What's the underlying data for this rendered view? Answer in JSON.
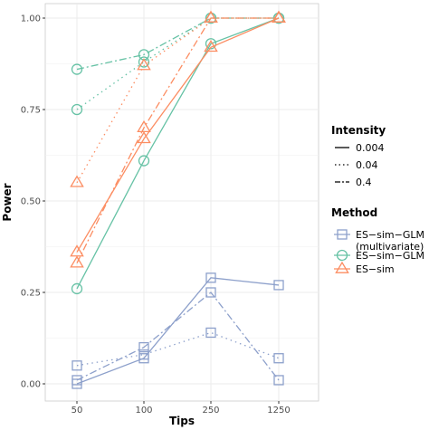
{
  "chart_data": {
    "type": "line",
    "xlabel": "Tips",
    "ylabel": "Power",
    "categories": [
      "50",
      "100",
      "250",
      "1250"
    ],
    "y_ticks": [
      "0.00",
      "0.25",
      "0.50",
      "0.75",
      "1.00"
    ],
    "ylim": [
      0,
      1
    ],
    "grid": true,
    "legend_placement": "right",
    "legends": {
      "intensity": {
        "title": "Intensity",
        "items": [
          {
            "label": "0.004",
            "linetype": "solid"
          },
          {
            "label": "0.04",
            "linetype": "dotted"
          },
          {
            "label": "0.4",
            "linetype": "dashdot"
          }
        ]
      },
      "method": {
        "title": "Method",
        "items": [
          {
            "label_lines": [
              "ES−sim−GLM",
              "(multivariate)"
            ],
            "marker": "square",
            "color": "#8da0cb"
          },
          {
            "label_lines": [
              "ES−sim−GLM"
            ],
            "marker": "circle",
            "color": "#66c2a5"
          },
          {
            "label_lines": [
              "ES−sim"
            ],
            "marker": "triangle",
            "color": "#fc8d62"
          }
        ]
      }
    },
    "series": [
      {
        "method": "ES−sim−GLM",
        "intensity": "0.004",
        "color": "#66c2a5",
        "marker": "circle",
        "linetype": "solid",
        "values": [
          0.26,
          0.61,
          0.93,
          1.0
        ]
      },
      {
        "method": "ES−sim−GLM",
        "intensity": "0.04",
        "color": "#66c2a5",
        "marker": "circle",
        "linetype": "dotted",
        "values": [
          0.75,
          0.88,
          1.0,
          1.0
        ]
      },
      {
        "method": "ES−sim−GLM",
        "intensity": "0.4",
        "color": "#66c2a5",
        "marker": "circle",
        "linetype": "dashdot",
        "values": [
          0.86,
          0.9,
          1.0,
          1.0
        ]
      },
      {
        "method": "ES−sim",
        "intensity": "0.004",
        "color": "#fc8d62",
        "marker": "triangle",
        "linetype": "solid",
        "values": [
          0.36,
          0.67,
          0.92,
          1.0
        ]
      },
      {
        "method": "ES−sim",
        "intensity": "0.04",
        "color": "#fc8d62",
        "marker": "triangle",
        "linetype": "dotted",
        "values": [
          0.55,
          0.87,
          1.0,
          1.0
        ]
      },
      {
        "method": "ES−sim",
        "intensity": "0.4",
        "color": "#fc8d62",
        "marker": "triangle",
        "linetype": "dashdot",
        "values": [
          0.33,
          0.7,
          1.0,
          1.0
        ]
      },
      {
        "method": "ES−sim−GLM (multivariate)",
        "intensity": "0.004",
        "color": "#8da0cb",
        "marker": "square",
        "linetype": "solid",
        "values": [
          0.0,
          0.07,
          0.29,
          0.27
        ]
      },
      {
        "method": "ES−sim−GLM (multivariate)",
        "intensity": "0.04",
        "color": "#8da0cb",
        "marker": "square",
        "linetype": "dotted",
        "values": [
          0.05,
          0.08,
          0.14,
          0.07
        ]
      },
      {
        "method": "ES−sim−GLM (multivariate)",
        "intensity": "0.4",
        "color": "#8da0cb",
        "marker": "square",
        "linetype": "dashdot",
        "values": [
          0.01,
          0.1,
          0.25,
          0.01
        ]
      }
    ]
  }
}
